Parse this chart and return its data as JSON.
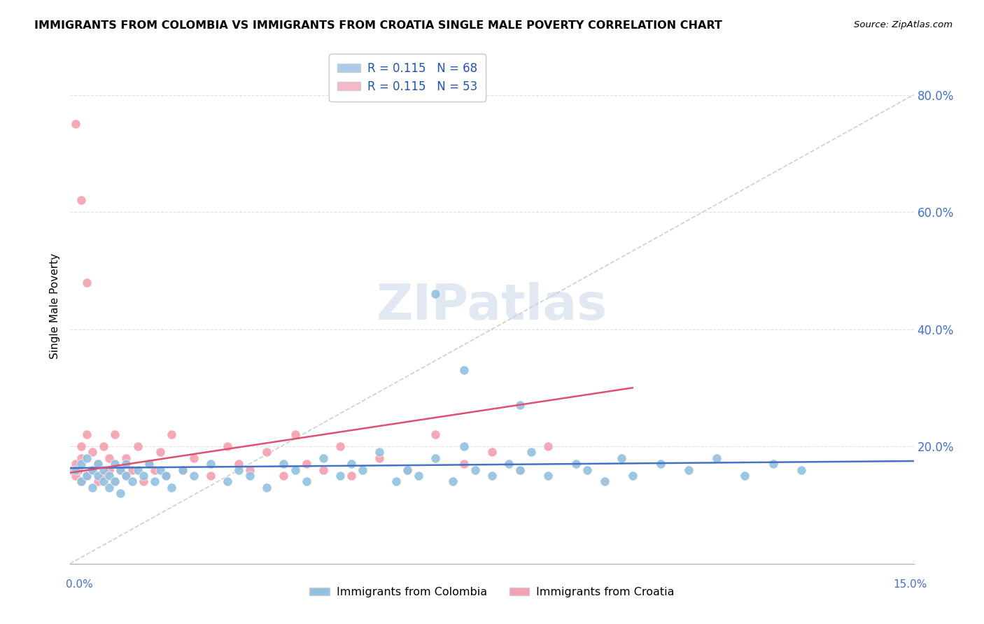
{
  "title": "IMMIGRANTS FROM COLOMBIA VS IMMIGRANTS FROM CROATIA SINGLE MALE POVERTY CORRELATION CHART",
  "source": "Source: ZipAtlas.com",
  "ylabel": "Single Male Poverty",
  "xlim": [
    0.0,
    0.15
  ],
  "ylim": [
    0.0,
    0.88
  ],
  "ytick_vals": [
    0.2,
    0.4,
    0.6,
    0.8
  ],
  "ytick_labels": [
    "20.0%",
    "40.0%",
    "60.0%",
    "80.0%"
  ],
  "series1_name": "Immigrants from Colombia",
  "series2_name": "Immigrants from Croatia",
  "series1_color": "#92c0e0",
  "series2_color": "#f4a0b0",
  "series1_line_color": "#4472c4",
  "series2_line_color": "#e05070",
  "series1_legend_color": "#aacce8",
  "series2_legend_color": "#f4b8c8",
  "legend1_label": "R = 0.115   N = 68",
  "legend2_label": "R = 0.115   N = 53",
  "watermark_text": "ZIPatlas",
  "background_color": "#ffffff",
  "grid_color": "#cccccc",
  "diag_line_color": "#bbbbbb",
  "colombia_x": [
    0.001,
    0.002,
    0.002,
    0.003,
    0.003,
    0.004,
    0.004,
    0.005,
    0.005,
    0.006,
    0.006,
    0.007,
    0.007,
    0.008,
    0.008,
    0.009,
    0.009,
    0.01,
    0.01,
    0.011,
    0.012,
    0.013,
    0.014,
    0.015,
    0.016,
    0.017,
    0.018,
    0.02,
    0.022,
    0.025,
    0.028,
    0.03,
    0.032,
    0.035,
    0.038,
    0.04,
    0.042,
    0.045,
    0.048,
    0.05,
    0.052,
    0.055,
    0.058,
    0.06,
    0.062,
    0.065,
    0.068,
    0.07,
    0.072,
    0.075,
    0.078,
    0.08,
    0.082,
    0.085,
    0.09,
    0.092,
    0.095,
    0.098,
    0.1,
    0.105,
    0.11,
    0.115,
    0.12,
    0.125,
    0.13,
    0.065,
    0.07,
    0.08
  ],
  "colombia_y": [
    0.16,
    0.14,
    0.17,
    0.15,
    0.18,
    0.13,
    0.16,
    0.15,
    0.17,
    0.14,
    0.16,
    0.13,
    0.15,
    0.17,
    0.14,
    0.16,
    0.12,
    0.15,
    0.17,
    0.14,
    0.16,
    0.15,
    0.17,
    0.14,
    0.16,
    0.15,
    0.13,
    0.16,
    0.15,
    0.17,
    0.14,
    0.16,
    0.15,
    0.13,
    0.17,
    0.16,
    0.14,
    0.18,
    0.15,
    0.17,
    0.16,
    0.19,
    0.14,
    0.16,
    0.15,
    0.18,
    0.14,
    0.2,
    0.16,
    0.15,
    0.17,
    0.16,
    0.19,
    0.15,
    0.17,
    0.16,
    0.14,
    0.18,
    0.15,
    0.17,
    0.16,
    0.18,
    0.15,
    0.17,
    0.16,
    0.46,
    0.33,
    0.27
  ],
  "croatia_x": [
    0.0005,
    0.001,
    0.001,
    0.0015,
    0.002,
    0.002,
    0.002,
    0.003,
    0.003,
    0.004,
    0.004,
    0.005,
    0.005,
    0.006,
    0.006,
    0.007,
    0.007,
    0.008,
    0.008,
    0.009,
    0.01,
    0.01,
    0.011,
    0.012,
    0.013,
    0.014,
    0.015,
    0.016,
    0.017,
    0.018,
    0.02,
    0.022,
    0.025,
    0.028,
    0.03,
    0.032,
    0.035,
    0.038,
    0.04,
    0.042,
    0.045,
    0.048,
    0.05,
    0.055,
    0.06,
    0.065,
    0.07,
    0.075,
    0.08,
    0.085,
    0.001,
    0.002,
    0.003
  ],
  "croatia_y": [
    0.16,
    0.15,
    0.17,
    0.16,
    0.14,
    0.18,
    0.2,
    0.15,
    0.22,
    0.16,
    0.19,
    0.14,
    0.17,
    0.15,
    0.2,
    0.16,
    0.18,
    0.14,
    0.22,
    0.16,
    0.15,
    0.18,
    0.16,
    0.2,
    0.14,
    0.17,
    0.16,
    0.19,
    0.15,
    0.22,
    0.16,
    0.18,
    0.15,
    0.2,
    0.17,
    0.16,
    0.19,
    0.15,
    0.22,
    0.17,
    0.16,
    0.2,
    0.15,
    0.18,
    0.16,
    0.22,
    0.17,
    0.19,
    0.16,
    0.2,
    0.75,
    0.62,
    0.48
  ]
}
